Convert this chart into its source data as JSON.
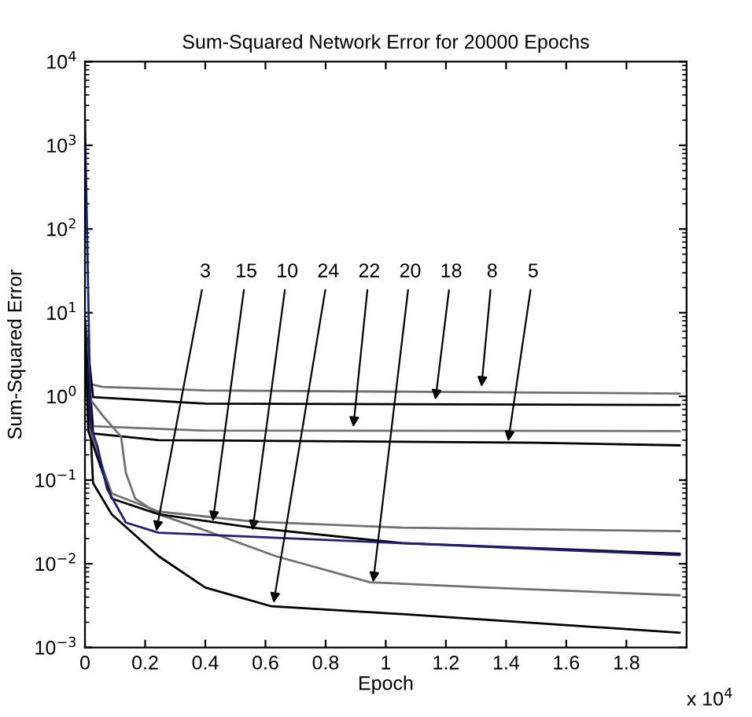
{
  "chart_data": {
    "type": "line",
    "title": "Sum-Squared Network Error for 20000 Epochs",
    "xlabel": "Epoch",
    "ylabel": "Sum-Squared Error",
    "log": "y",
    "xlim": [
      0,
      2
    ],
    "xticks": [
      0,
      0.2,
      0.4,
      0.6,
      0.8,
      1,
      1.2,
      1.4,
      1.6,
      1.8
    ],
    "ylim": [
      0.001,
      10000
    ],
    "yticks": [
      {
        "value": 0.001,
        "label": "10$^{−3}$"
      },
      {
        "value": 0.01,
        "label": "10$^{−2}$"
      },
      {
        "value": 0.1,
        "label": "10$^{−1}$"
      },
      {
        "value": 1,
        "label": "10$^{0}$"
      },
      {
        "value": 10,
        "label": "10$^{1}$"
      },
      {
        "value": 100,
        "label": "10$^{2}$"
      },
      {
        "value": 1000,
        "label": "10$^{3}$"
      },
      {
        "value": 10000,
        "label": "10$^{4}$"
      }
    ],
    "marker": "none",
    "line_style": "solid",
    "series": [
      {
        "color": "#707070",
        "x": [
          0,
          0.019,
          0.058,
          0.4,
          1.977
        ],
        "values": [
          8,
          1.4,
          1.3,
          1.18,
          1.08
        ]
      },
      {
        "color": "#000000",
        "x": [
          0,
          0.027,
          0.4,
          1.977
        ],
        "values": [
          8,
          0.98,
          0.82,
          0.79
        ]
      },
      {
        "color": "#707070",
        "x": [
          0,
          0.027,
          0.4,
          1.977
        ],
        "values": [
          8,
          0.44,
          0.39,
          0.385
        ]
      },
      {
        "color": "#000000",
        "x": [
          0,
          0.027,
          0.245,
          1.493,
          1.977
        ],
        "values": [
          8,
          0.36,
          0.3,
          0.28,
          0.26
        ]
      },
      {
        "color": "#707070",
        "x": [
          0,
          0.019,
          0.059,
          0.12,
          0.136,
          0.167,
          0.245,
          0.4,
          0.635,
          0.947,
          1.337,
          1.977
        ],
        "values": [
          8,
          0.91,
          0.59,
          0.33,
          0.122,
          0.06,
          0.039,
          0.025,
          0.0123,
          0.006,
          0.0052,
          0.0042
        ]
      },
      {
        "color": "#000000",
        "x": [
          0,
          0.027,
          0.089,
          0.245,
          0.4,
          0.62,
          1.056,
          1.977
        ],
        "values": [
          8,
          0.092,
          0.039,
          0.0123,
          0.0052,
          0.0031,
          0.0025,
          0.0015
        ]
      },
      {
        "color": "#707070",
        "x": [
          0,
          0.011,
          0.089,
          0.245,
          0.557,
          1.056,
          1.977
        ],
        "values": [
          8,
          0.44,
          0.069,
          0.042,
          0.032,
          0.027,
          0.0245
        ]
      },
      {
        "color": "#000000",
        "x": [
          0,
          0.011,
          0.089,
          0.245,
          0.557,
          1.056,
          1.977
        ],
        "values": [
          8,
          0.385,
          0.06,
          0.039,
          0.027,
          0.0176,
          0.0132
        ]
      },
      {
        "color": "#1f1f7a",
        "x": [
          0,
          0.019,
          0.042,
          0.073,
          0.136,
          0.245,
          1.056,
          1.977
        ],
        "values": [
          2000,
          0.44,
          0.25,
          0.079,
          0.031,
          0.0235,
          0.0176,
          0.0127
        ]
      }
    ],
    "annotations": [
      {
        "text": "3",
        "x": 0.237,
        "y": 0.0245
      },
      {
        "text": "15",
        "x": 0.425,
        "y": 0.032
      },
      {
        "text": "10",
        "x": 0.557,
        "y": 0.025
      },
      {
        "text": "24",
        "x": 0.627,
        "y": 0.0034
      },
      {
        "text": "22",
        "x": 0.892,
        "y": 0.43
      },
      {
        "text": "20",
        "x": 0.958,
        "y": 0.006
      },
      {
        "text": "18",
        "x": 1.165,
        "y": 0.91
      },
      {
        "text": "8",
        "x": 1.318,
        "y": 1.3
      },
      {
        "text": "5",
        "x": 1.407,
        "y": 0.29
      },
      "x 10$^{4}$"
    ]
  }
}
